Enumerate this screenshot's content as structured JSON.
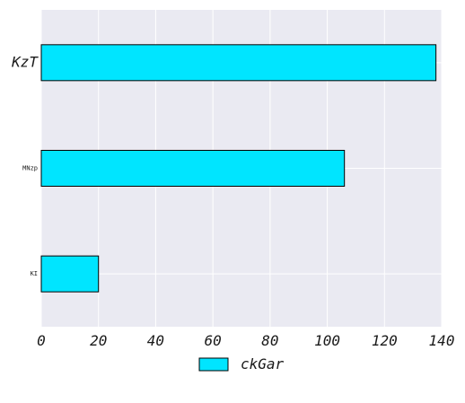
{
  "chart_data": {
    "type": "bar",
    "orientation": "horizontal",
    "categories": [
      "KzT",
      "MNzp",
      "KI"
    ],
    "series": [
      {
        "name": "ckGar",
        "values": [
          138,
          106,
          20
        ],
        "color": "#00e5ff"
      }
    ],
    "xlim": [
      0,
      140
    ],
    "x_ticks": [
      0,
      20,
      40,
      60,
      80,
      100,
      120,
      140
    ],
    "grid": true,
    "legend_position": "bottom-center",
    "colors": {
      "background": "#eaeaf2",
      "grid": "#ffffff",
      "bar": "#00e5ff",
      "bar_edge": "#000000",
      "text": "#1a1a1a"
    }
  }
}
